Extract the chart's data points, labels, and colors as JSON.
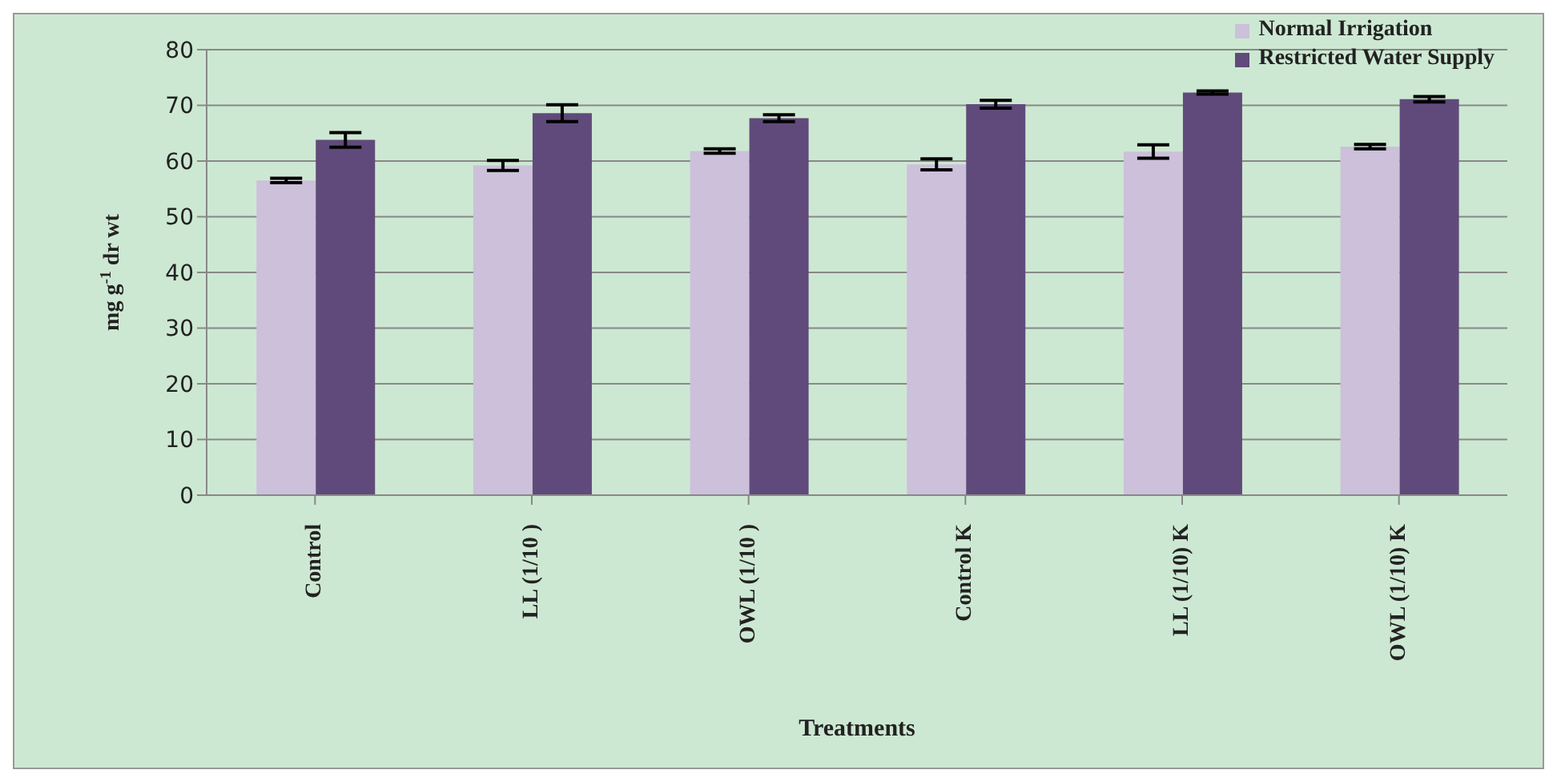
{
  "chart_data": {
    "type": "bar",
    "xlabel": "Treatments",
    "ylabel": "mg g$^{-1}$ dr wt",
    "categories": [
      "Control",
      "LL (1/10 )",
      "OWL (1/10 )",
      "Control  K",
      "LL (1/10) K",
      "OWL (1/10) K"
    ],
    "series": [
      {
        "name": "Normal Irrigation",
        "color": "#ccc0da",
        "values": [
          56.5,
          59.2,
          61.8,
          59.4,
          61.7,
          62.6
        ],
        "errors": [
          0.4,
          0.9,
          0.4,
          1.0,
          1.2,
          0.4
        ]
      },
      {
        "name": "Restricted Water Supply",
        "color": "#604a7b",
        "values": [
          63.8,
          68.6,
          67.7,
          70.2,
          72.3,
          71.1
        ],
        "errors": [
          1.3,
          1.5,
          0.6,
          0.7,
          0.3,
          0.5
        ]
      }
    ],
    "ylim": [
      0,
      80
    ],
    "yticks": [
      0,
      10,
      20,
      30,
      40,
      50,
      60,
      70,
      80
    ],
    "grid": "y",
    "legend": "top right"
  }
}
